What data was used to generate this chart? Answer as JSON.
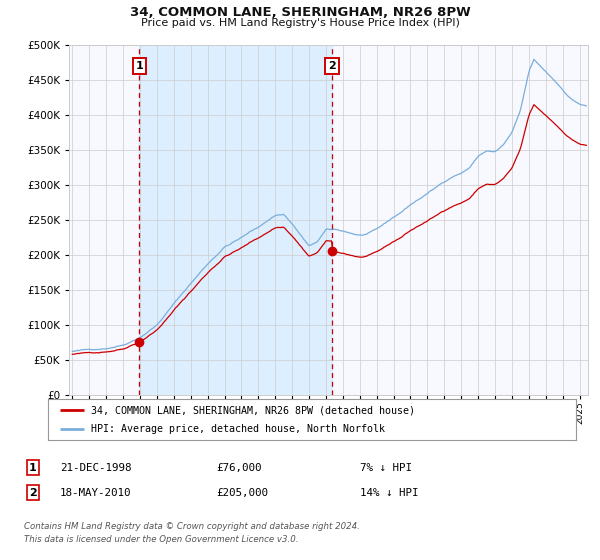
{
  "title": "34, COMMON LANE, SHERINGHAM, NR26 8PW",
  "subtitle": "Price paid vs. HM Land Registry's House Price Index (HPI)",
  "legend_line1": "34, COMMON LANE, SHERINGHAM, NR26 8PW (detached house)",
  "legend_line2": "HPI: Average price, detached house, North Norfolk",
  "purchase1_date": "21-DEC-1998",
  "purchase1_price": 76000,
  "purchase1_label": "7% ↓ HPI",
  "purchase2_date": "18-MAY-2010",
  "purchase2_price": 205000,
  "purchase2_label": "14% ↓ HPI",
  "footer": "Contains HM Land Registry data © Crown copyright and database right 2024.\nThis data is licensed under the Open Government Licence v3.0.",
  "hpi_color": "#7aaedc",
  "price_color": "#cc0000",
  "vline_color": "#cc0000",
  "shade_color": "#ddeeff",
  "background_color": "#f8f8ff",
  "grid_color": "#cccccc",
  "purchase1_x": 1998.97,
  "purchase2_x": 2010.38,
  "ylim": [
    0,
    500000
  ],
  "xlim_start": 1994.8,
  "xlim_end": 2025.5
}
